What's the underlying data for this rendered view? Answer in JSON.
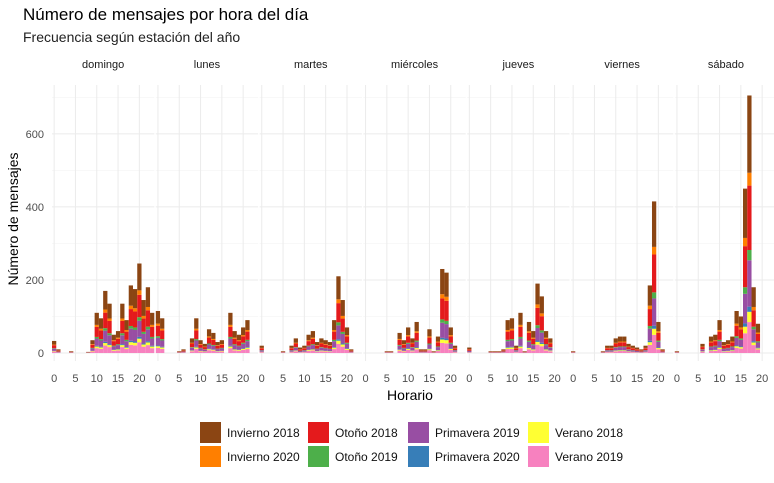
{
  "chart_data": {
    "type": "bar",
    "title": "Número de mensajes por hora del día",
    "subtitle": "Frecuencia según estación del año",
    "xlabel": "Horario",
    "ylabel": "Número de mensajes",
    "ylim": [
      0,
      720
    ],
    "yticks": [
      0,
      200,
      400,
      600
    ],
    "xticks": [
      0,
      5,
      10,
      15,
      20
    ],
    "grid": true,
    "legend_position": "bottom",
    "panels": [
      "domingo",
      "lunes",
      "martes",
      "miércoles",
      "jueves",
      "viernes",
      "sábado"
    ],
    "series": [
      {
        "name": "Invierno 2018",
        "color": "#8B4513"
      },
      {
        "name": "Invierno 2020",
        "color": "#FF7F00"
      },
      {
        "name": "Otoño 2018",
        "color": "#E41A1C"
      },
      {
        "name": "Otoño 2019",
        "color": "#4DAF4A"
      },
      {
        "name": "Primavera 2019",
        "color": "#984EA3"
      },
      {
        "name": "Primavera 2020",
        "color": "#377EB8"
      },
      {
        "name": "Verano 2018",
        "color": "#FFFF33"
      },
      {
        "name": "Verano 2019",
        "color": "#F781BF"
      }
    ],
    "totals": {
      "domingo": [
        33,
        10,
        0,
        0,
        5,
        0,
        0,
        0,
        3,
        35,
        110,
        95,
        170,
        135,
        50,
        60,
        135,
        90,
        185,
        175,
        245,
        145,
        180,
        110
      ],
      "lunes": [
        115,
        95,
        0,
        0,
        0,
        5,
        10,
        0,
        40,
        95,
        35,
        25,
        65,
        55,
        30,
        35,
        0,
        110,
        60,
        50,
        70,
        90
      ],
      "martes": [
        20,
        0,
        0,
        0,
        0,
        5,
        0,
        20,
        40,
        15,
        20,
        50,
        60,
        30,
        40,
        35,
        30,
        90,
        210,
        145,
        70,
        10
      ],
      "miércoles": [
        0,
        0,
        0,
        0,
        0,
        5,
        5,
        0,
        55,
        35,
        70,
        40,
        85,
        10,
        10,
        65,
        5,
        45,
        230,
        220,
        70,
        20
      ],
      "jueves": [
        15,
        0,
        0,
        0,
        0,
        5,
        5,
        5,
        10,
        90,
        95,
        20,
        110,
        5,
        85,
        60,
        190,
        155,
        60,
        40
      ],
      "viernes": [
        5,
        0,
        0,
        0,
        0,
        0,
        0,
        5,
        20,
        20,
        40,
        45,
        45,
        25,
        20,
        15,
        10,
        20,
        185,
        415,
        85,
        10
      ],
      "sábado": [
        5,
        0,
        0,
        0,
        0,
        0,
        25,
        0,
        45,
        50,
        90,
        30,
        35,
        45,
        115,
        100,
        450,
        705,
        180,
        80
      ]
    }
  }
}
